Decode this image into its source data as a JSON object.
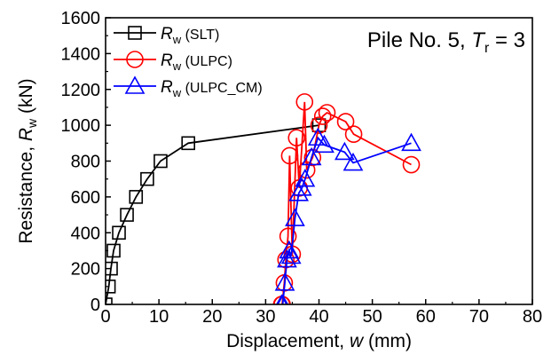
{
  "chart_data": {
    "type": "scatter",
    "annotation": {
      "prefix": "Pile No. 5, ",
      "sym": "T",
      "sub": "r",
      "suffix": " = 3"
    },
    "xlabel": {
      "prefix": "Displacement, ",
      "sym": "w",
      "suffix": " (mm)"
    },
    "ylabel": {
      "prefix": "Resistance, ",
      "sym": "R",
      "sub": "w",
      "suffix": " (kN)"
    },
    "xlim": [
      0,
      80
    ],
    "ylim": [
      0,
      1600
    ],
    "xticks": [
      "0",
      "10",
      "20",
      "30",
      "40",
      "50",
      "60",
      "70",
      "80"
    ],
    "yticks": [
      "0",
      "200",
      "400",
      "600",
      "800",
      "1000",
      "1200",
      "1400",
      "1600"
    ],
    "grid": false,
    "legend_position": "top-left",
    "series": [
      {
        "name": "(SLT)",
        "sym": "R",
        "sub": "w",
        "color": "#000000",
        "marker": "square",
        "x": [
          0,
          0.6,
          1.0,
          1.5,
          2.5,
          4.0,
          5.7,
          7.8,
          10.3,
          15.5,
          40.0
        ],
        "y": [
          0,
          100,
          200,
          300,
          400,
          500,
          600,
          700,
          800,
          900,
          1000
        ]
      },
      {
        "name": "(ULPC)",
        "sym": "R",
        "sub": "w",
        "color": "#ff0000",
        "marker": "circle",
        "x": [
          33.0,
          33.1,
          33.5,
          33.8,
          34.2,
          34.5,
          35.0,
          35.8,
          36.3,
          37.3,
          37.7,
          38.8,
          40.0,
          40.7,
          41.5,
          45.0,
          46.5,
          57.3
        ],
        "y": [
          0,
          0,
          120,
          250,
          380,
          830,
          280,
          930,
          650,
          1130,
          750,
          820,
          1000,
          1050,
          1070,
          1020,
          950,
          780
        ]
      },
      {
        "name": "(ULPC_CM)",
        "sym": "R",
        "sub": "w",
        "color": "#0000ff",
        "marker": "triangle",
        "x": [
          33.0,
          33.2,
          33.6,
          34.0,
          34.4,
          34.8,
          35.5,
          36.2,
          36.8,
          37.4,
          38.6,
          39.8,
          41.0,
          44.8,
          46.4,
          57.3
        ],
        "y": [
          0,
          0,
          120,
          250,
          300,
          270,
          480,
          620,
          650,
          700,
          820,
          930,
          890,
          850,
          790,
          900
        ]
      }
    ]
  }
}
